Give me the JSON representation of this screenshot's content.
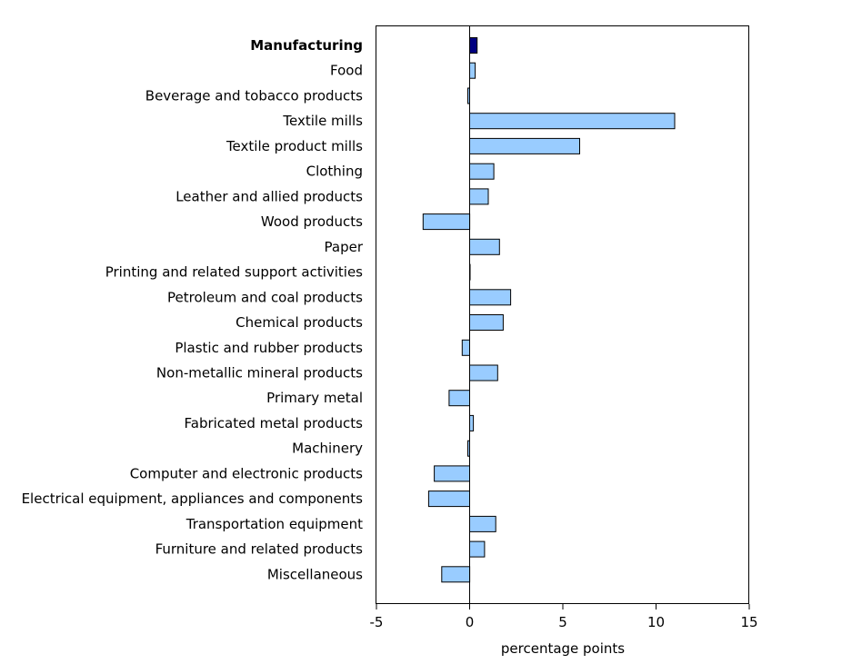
{
  "chart_data": {
    "type": "bar",
    "orientation": "horizontal",
    "title": "",
    "xlabel": "percentage points",
    "ylabel": "",
    "xlim": [
      -5,
      15
    ],
    "xticks": [
      -5,
      0,
      5,
      10,
      15
    ],
    "xtick_labels": [
      "-5",
      "0",
      "5",
      "10",
      "15"
    ],
    "grid": false,
    "highlight_category": "Manufacturing",
    "colors": {
      "highlight": "#000080",
      "bar": "#99ccff",
      "bar_outline": "#000000",
      "frame": "#000000"
    },
    "categories": [
      "Manufacturing",
      "Food",
      "Beverage and tobacco products",
      "Textile mills",
      "Textile product mills",
      "Clothing",
      "Leather and allied products",
      "Wood products",
      "Paper",
      "Printing and related support activities",
      "Petroleum and coal products",
      "Chemical products",
      "Plastic and rubber products",
      "Non-metallic mineral products",
      "Primary metal",
      "Fabricated metal products",
      "Machinery",
      "Computer and electronic products",
      "Electrical equipment, appliances and components",
      "Transportation equipment",
      "Furniture and related products",
      "Miscellaneous"
    ],
    "values": [
      0.4,
      0.3,
      -0.1,
      11.0,
      5.9,
      1.3,
      1.0,
      -2.5,
      1.6,
      0.0,
      2.2,
      1.8,
      -0.4,
      1.5,
      -1.1,
      0.2,
      -0.1,
      -1.9,
      -2.2,
      1.4,
      0.8,
      -1.5
    ]
  }
}
